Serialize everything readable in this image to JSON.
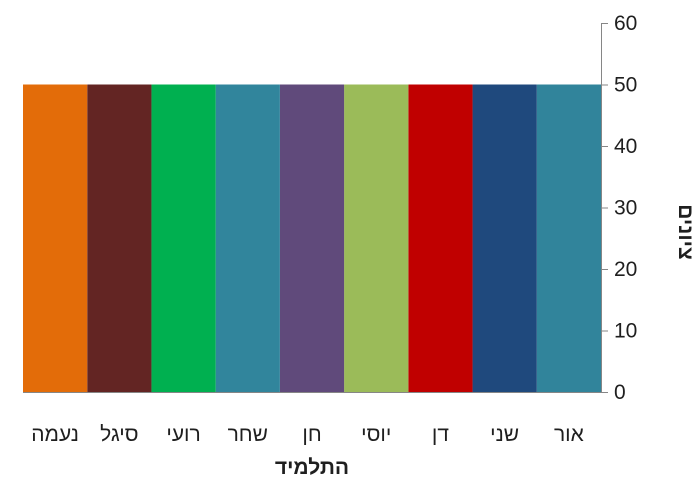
{
  "chart_data": {
    "type": "bar",
    "categories": [
      "אור",
      "שני",
      "דן",
      "יוסי",
      "חן",
      "שחר",
      "רועי",
      "סיגל",
      "נעמה"
    ],
    "values": [
      50,
      50,
      50,
      50,
      50,
      50,
      50,
      50,
      50
    ],
    "colors": [
      "#31849B",
      "#1F497D",
      "#C00000",
      "#9BBB59",
      "#604A7B",
      "#31859C",
      "#00B050",
      "#632523",
      "#E36C09"
    ],
    "title": "",
    "xlabel": "התלמיד",
    "ylabel": "ציונים",
    "ylim": [
      0,
      60
    ],
    "yticks": [
      "0",
      "10",
      "20",
      "30",
      "40",
      "50",
      "60"
    ],
    "y_axis_position": "right",
    "category_order": "right-to-left",
    "grid": false,
    "legend": "none"
  }
}
